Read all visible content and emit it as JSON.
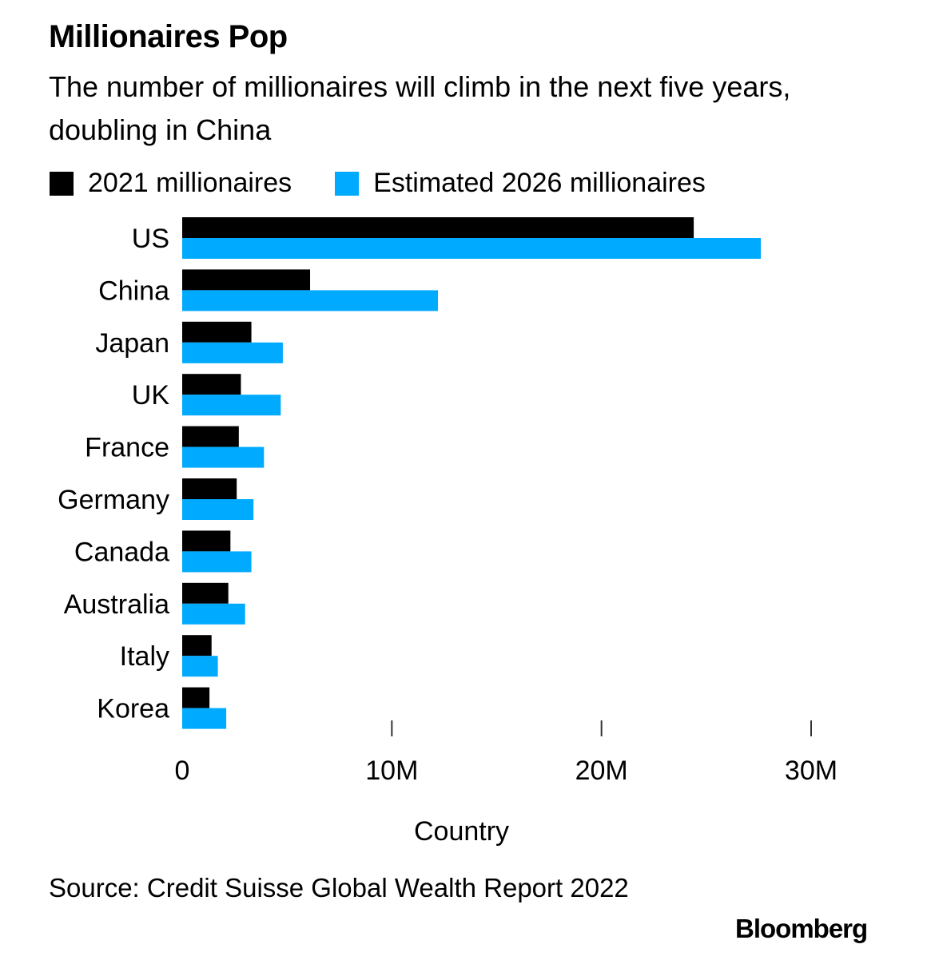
{
  "chart_data": {
    "type": "bar",
    "orientation": "horizontal",
    "title": "Millionaires Pop",
    "subtitle": "The number of millionaires will climb in the next five years, doubling in China",
    "xlabel": "Country",
    "ylabel": "",
    "categories": [
      "US",
      "China",
      "Japan",
      "UK",
      "France",
      "Germany",
      "Canada",
      "Australia",
      "Italy",
      "Korea"
    ],
    "series": [
      {
        "name": "2021 millionaires",
        "color": "#000000",
        "values": [
          24.4,
          6.1,
          3.3,
          2.8,
          2.7,
          2.6,
          2.3,
          2.2,
          1.4,
          1.3
        ]
      },
      {
        "name": "Estimated 2026 millionaires",
        "color": "#00aaff",
        "values": [
          27.6,
          12.2,
          4.8,
          4.7,
          3.9,
          3.4,
          3.3,
          3.0,
          1.7,
          2.1
        ]
      }
    ],
    "unit": "millions",
    "xlim": [
      0,
      30
    ],
    "xticks": [
      0,
      10,
      20,
      30
    ],
    "xtick_labels": [
      "0",
      "10M",
      "20M",
      "30M"
    ],
    "grid": false,
    "legend_position": "top-left"
  },
  "source": "Source: Credit Suisse Global Wealth Report 2022",
  "brand": "Bloomberg"
}
